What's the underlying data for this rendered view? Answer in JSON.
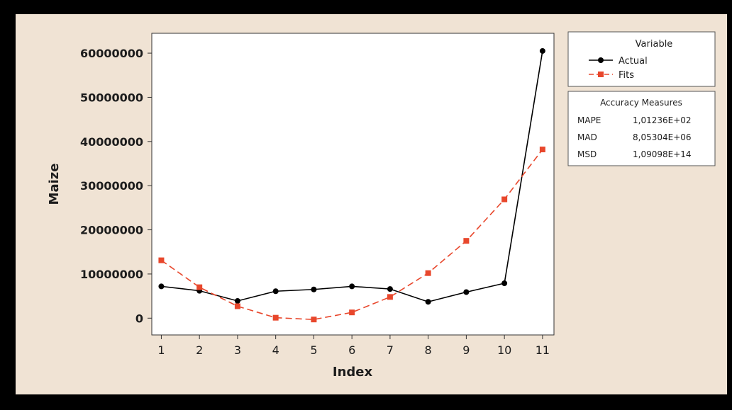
{
  "chart_data": {
    "type": "line",
    "xlabel": "Index",
    "ylabel": "Maize",
    "x": [
      1,
      2,
      3,
      4,
      5,
      6,
      7,
      8,
      9,
      10,
      11
    ],
    "xlim": [
      0.75,
      11.3
    ],
    "ylim": [
      -3800000,
      64500000
    ],
    "yticks": [
      0,
      10000000,
      20000000,
      30000000,
      40000000,
      50000000,
      60000000
    ],
    "yticklabels": [
      "0",
      "10000000",
      "20000000",
      "30000000",
      "40000000",
      "50000000",
      "60000000"
    ],
    "series": [
      {
        "name": "Actual",
        "color": "#000000",
        "marker": "circle",
        "dashed": false,
        "values": [
          7200000,
          6200000,
          3900000,
          6100000,
          6500000,
          7200000,
          6600000,
          3700000,
          5900000,
          7900000,
          60500000
        ]
      },
      {
        "name": "Fits",
        "color": "#e8472c",
        "marker": "square",
        "dashed": true,
        "values": [
          13100000,
          7000000,
          2700000,
          100000,
          -300000,
          1300000,
          4800000,
          10200000,
          17500000,
          26900000,
          38200000
        ]
      }
    ],
    "legend": {
      "title": "Variable",
      "placement": "right"
    },
    "accuracy": {
      "title": "Accuracy Measures",
      "rows": [
        {
          "label": "MAPE",
          "value": "1,01236E+02"
        },
        {
          "label": "MAD",
          "value": "8,05304E+06"
        },
        {
          "label": "MSD",
          "value": "1,09098E+14"
        }
      ]
    }
  }
}
